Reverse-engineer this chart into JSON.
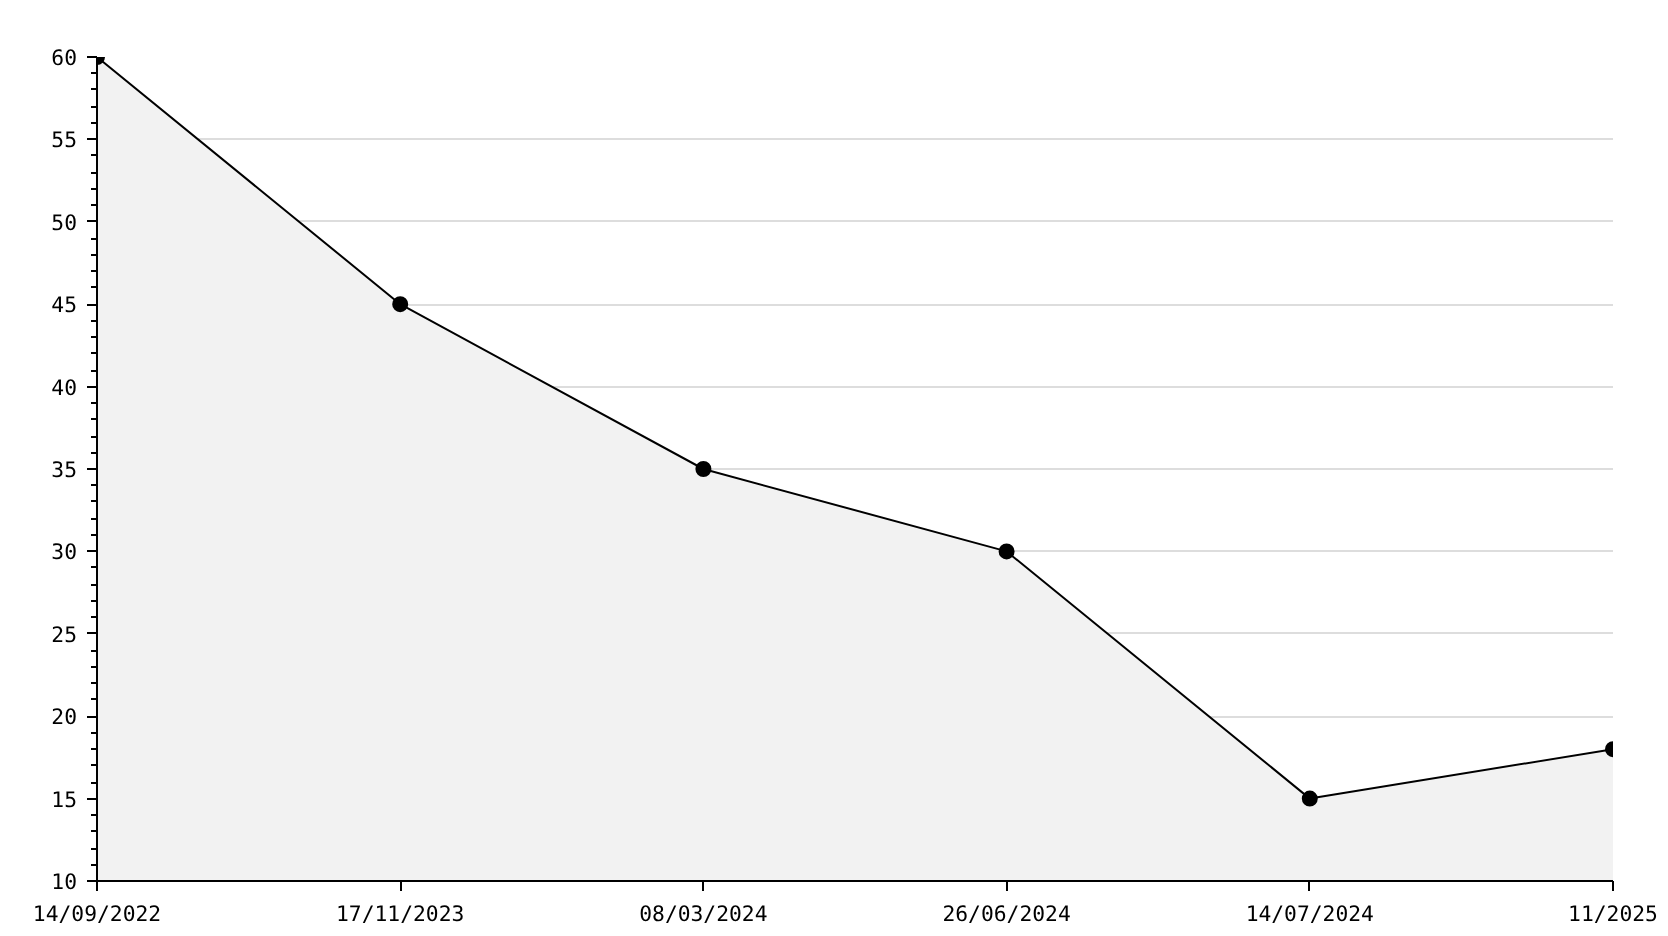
{
  "chart_data": {
    "type": "area",
    "categories": [
      "14/09/2022",
      "17/11/2023",
      "08/03/2024",
      "26/06/2024",
      "14/07/2024",
      "11/2025"
    ],
    "series": [
      {
        "color": "#f2f2f2",
        "values": [
          60,
          45,
          35,
          30,
          15,
          18
        ]
      }
    ],
    "ylim": [
      10,
      60
    ],
    "yticks": [
      10,
      15,
      20,
      25,
      30,
      35,
      40,
      45,
      50,
      55,
      60
    ],
    "grid": "y",
    "marker": "circle",
    "line_style": "solid"
  }
}
